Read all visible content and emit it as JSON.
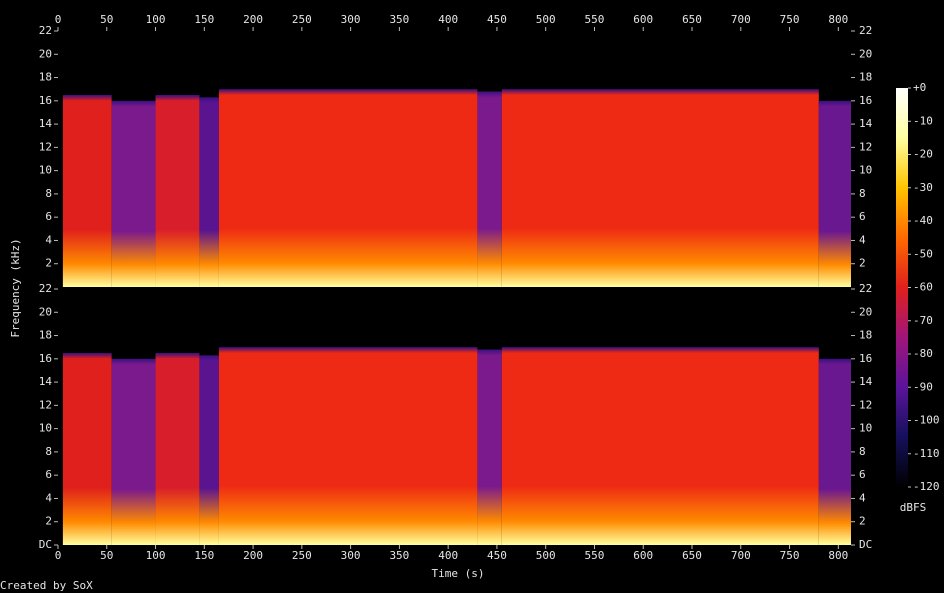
{
  "chart_data": {
    "type": "spectrogram",
    "xlabel": "Time (s)",
    "ylabel": "Frequency (kHz)",
    "credit": "Created by SoX",
    "xlim": [
      0,
      813
    ],
    "xticks": [
      0,
      50,
      100,
      150,
      200,
      250,
      300,
      350,
      400,
      450,
      500,
      550,
      600,
      650,
      700,
      750,
      800
    ],
    "ylim": [
      0,
      22
    ],
    "panels": [
      {
        "yticks": [
          2,
          4,
          6,
          8,
          10,
          12,
          14,
          16,
          18,
          20,
          22
        ]
      },
      {
        "yticks": [
          {
            "value": 0,
            "label": "DC"
          },
          2,
          4,
          6,
          8,
          10,
          12,
          14,
          16,
          18,
          20,
          22
        ]
      }
    ],
    "regions": [
      {
        "start": 5,
        "end": 55,
        "top": 16.5,
        "color": "#e0201c"
      },
      {
        "start": 55,
        "end": 100,
        "top": 16,
        "color": "#7a1a8c"
      },
      {
        "start": 100,
        "end": 145,
        "top": 16.5,
        "color": "#d81e2a"
      },
      {
        "start": 145,
        "end": 165,
        "top": 16.3,
        "color": "#5a1490"
      },
      {
        "start": 165,
        "end": 430,
        "top": 17,
        "color": "#ee2a14"
      },
      {
        "start": 430,
        "end": 455,
        "top": 16.8,
        "color": "#7a1a8c"
      },
      {
        "start": 455,
        "end": 780,
        "top": 17,
        "color": "#ee2a14"
      },
      {
        "start": 780,
        "end": 813,
        "top": 16,
        "color": "#6a1890"
      }
    ],
    "colorbar": {
      "label": "dBFS",
      "lim": [
        -120,
        0
      ],
      "ticks": [
        {
          "value": 0,
          "label": "+0"
        },
        -10,
        -20,
        -30,
        -40,
        -50,
        -60,
        -70,
        -80,
        -90,
        -100,
        -110,
        -120
      ],
      "colors": [
        "#000000",
        "#15105a",
        "#5a149a",
        "#a0157a",
        "#e0201c",
        "#ff6a00",
        "#ffc400",
        "#ffffa0",
        "#ffffff"
      ]
    }
  }
}
